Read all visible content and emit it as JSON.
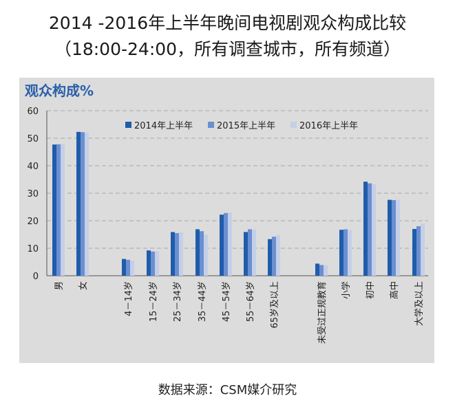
{
  "title_line1": "2014 -2016年上半年晚间电视剧观众构成比较",
  "title_line2": "（18:00-24:00，所有调查城市，所有频道）",
  "source": "数据来源：CSM媒介研究",
  "colors": {
    "s2014": "#1f5cab",
    "s2015": "#6b8fd0",
    "s2016": "#c5cfe8",
    "panel": "#dcdcdc"
  },
  "chart_data": {
    "type": "bar",
    "ylabel": "观众构成%",
    "ylim": [
      0,
      60
    ],
    "yticks": [
      0,
      10,
      20,
      30,
      40,
      50,
      60
    ],
    "grid": true,
    "legend_position": "top",
    "categories": [
      "男",
      "女",
      "4－14岁",
      "15－24岁",
      "25－34岁",
      "35－44岁",
      "45－54岁",
      "55－64岁",
      "65岁及以上",
      "未受过正规教育",
      "小学",
      "初中",
      "高中",
      "大学及以上"
    ],
    "series": [
      {
        "name": "2014年上半年",
        "values": [
          47.7,
          52.3,
          6.1,
          9.2,
          15.9,
          16.9,
          22.2,
          15.9,
          13.3,
          4.4,
          16.7,
          34.2,
          27.6,
          17.0
        ]
      },
      {
        "name": "2015年上半年",
        "values": [
          47.8,
          52.2,
          5.8,
          8.8,
          15.5,
          16.2,
          22.8,
          16.9,
          14.2,
          3.9,
          16.9,
          33.6,
          27.5,
          18.0
        ]
      },
      {
        "name": "2016年上半年",
        "values": [
          47.9,
          52.1,
          5.5,
          8.9,
          15.8,
          14.9,
          23.0,
          16.8,
          14.8,
          3.8,
          16.6,
          33.3,
          27.6,
          18.9
        ]
      }
    ]
  }
}
